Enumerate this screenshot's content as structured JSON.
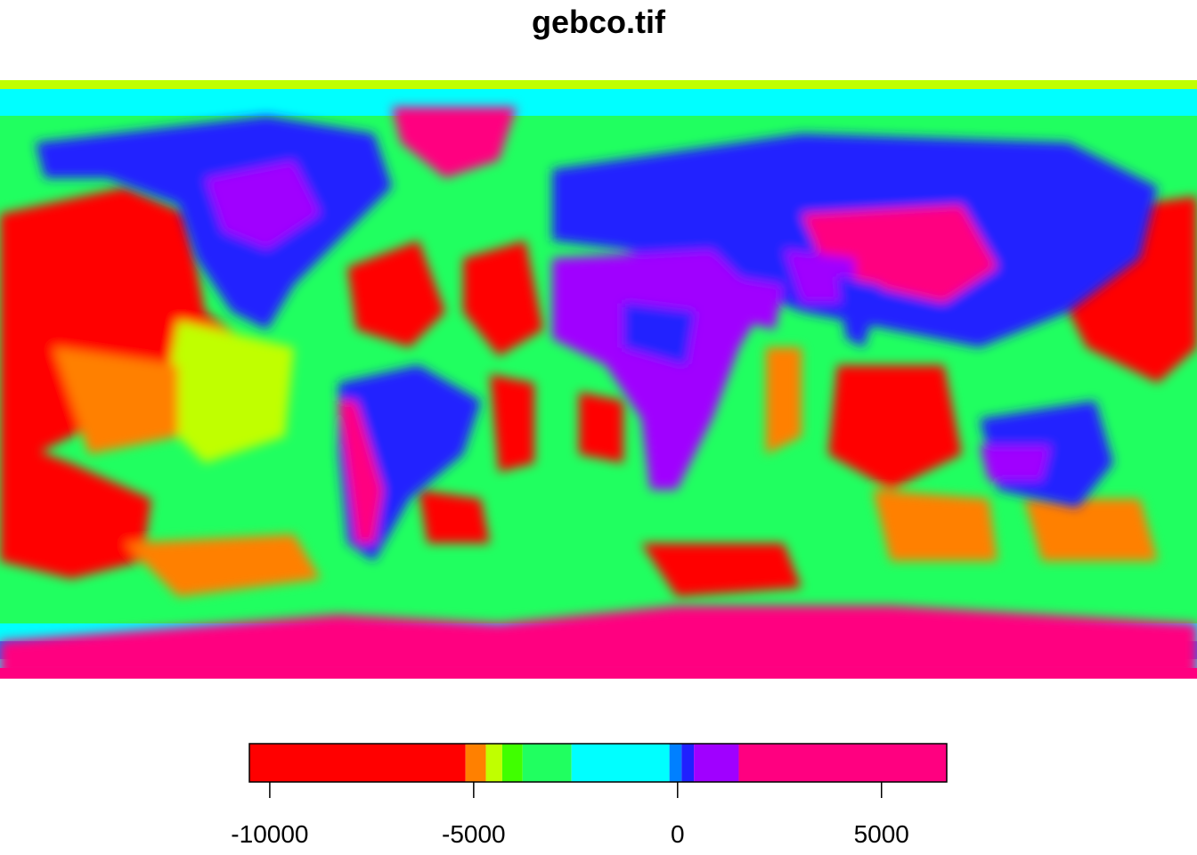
{
  "title": "gebco.tif",
  "legend": {
    "breaks": [
      -10500,
      -5200,
      -4700,
      -4300,
      -3800,
      -2600,
      -200,
      100,
      400,
      1500,
      6600
    ],
    "colors": [
      "#FF0000",
      "#FF8000",
      "#C0FF00",
      "#40FF00",
      "#20FF60",
      "#00FFFF",
      "#0080FF",
      "#2020FF",
      "#A000FF",
      "#FF0080"
    ],
    "ticks": [
      -10000,
      -5000,
      0,
      5000
    ],
    "tick_labels": [
      "-10000",
      "-5000",
      "0",
      "5000"
    ]
  }
}
